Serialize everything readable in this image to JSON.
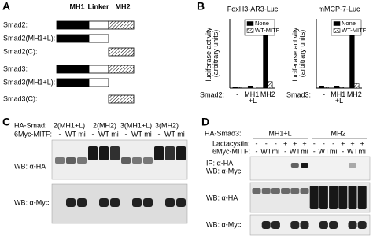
{
  "panel_labels": [
    "A",
    "B",
    "C",
    "D"
  ],
  "panel_a": {
    "headers": [
      "MH1",
      "Linker",
      "MH2"
    ],
    "rows": [
      "Smad2:",
      "Smad2(MH1+L):",
      "Smad2(C):",
      "Smad3:",
      "Smad3(MH1+L):",
      "Smad3(C):"
    ]
  },
  "chart_data": [
    {
      "type": "bar",
      "title": "FoxH3-AR3-Luc",
      "y_label": "luciferase activity (arbitrary units)",
      "x_label": "Smad2:",
      "categories": [
        "-",
        "MH1 +L",
        "MH2"
      ],
      "series": [
        {
          "name": "None",
          "color": "#000000",
          "values": [
            0.5,
            1,
            30
          ]
        },
        {
          "name": "WT-MITF",
          "color": "#ffffff",
          "pattern": "hatch",
          "values": [
            0.3,
            0.5,
            3
          ]
        }
      ],
      "ylim": [
        0,
        32
      ],
      "legend": "upper right"
    },
    {
      "type": "bar",
      "title": "mMCP-7-Luc",
      "y_label": "luciferase activity (arbitrary units)",
      "x_label": "Smad3:",
      "categories": [
        "-",
        "MH1 +L",
        "MH2"
      ],
      "series": [
        {
          "name": "None",
          "color": "#000000",
          "values": [
            1,
            1,
            31
          ]
        },
        {
          "name": "WT-MITF",
          "color": "#ffffff",
          "pattern": "hatch",
          "values": [
            0.3,
            0.3,
            2
          ]
        }
      ],
      "ylim": [
        0,
        32
      ],
      "legend": "upper right"
    }
  ],
  "panel_c": {
    "header_label": "HA-Smad:",
    "groups": [
      "2(MH1+L)",
      "2(MH2)",
      "3(MH1+L)",
      "3(MH2)"
    ],
    "mitf_label": "6Myc-MITF:",
    "lanes": [
      "-",
      "WT",
      "mi",
      "-",
      "WT",
      "mi",
      "-",
      "WT",
      "mi",
      "-",
      "WT",
      "mi"
    ],
    "blots": [
      "WB: α-HA",
      "WB: α-Myc"
    ]
  },
  "panel_d": {
    "header_label": "HA-Smad3:",
    "groups": [
      "MH1+L",
      "MH2"
    ],
    "lactacystin_label": "Lactacystin:",
    "lactacystin": [
      "-",
      "-",
      "-",
      "+",
      "+",
      "+",
      "-",
      "-",
      "-",
      "+",
      "+",
      "+"
    ],
    "mitf_label": "6Myc-MITF:",
    "lanes": [
      "-",
      "WT",
      "mi",
      "-",
      "WT",
      "mi",
      "-",
      "WT",
      "mi",
      "-",
      "WT",
      "mi"
    ],
    "blots": [
      [
        "IP: α-HA",
        "WB: α-Myc"
      ],
      [
        "WB: α-HA"
      ],
      [
        "WB: α-Myc"
      ]
    ]
  }
}
